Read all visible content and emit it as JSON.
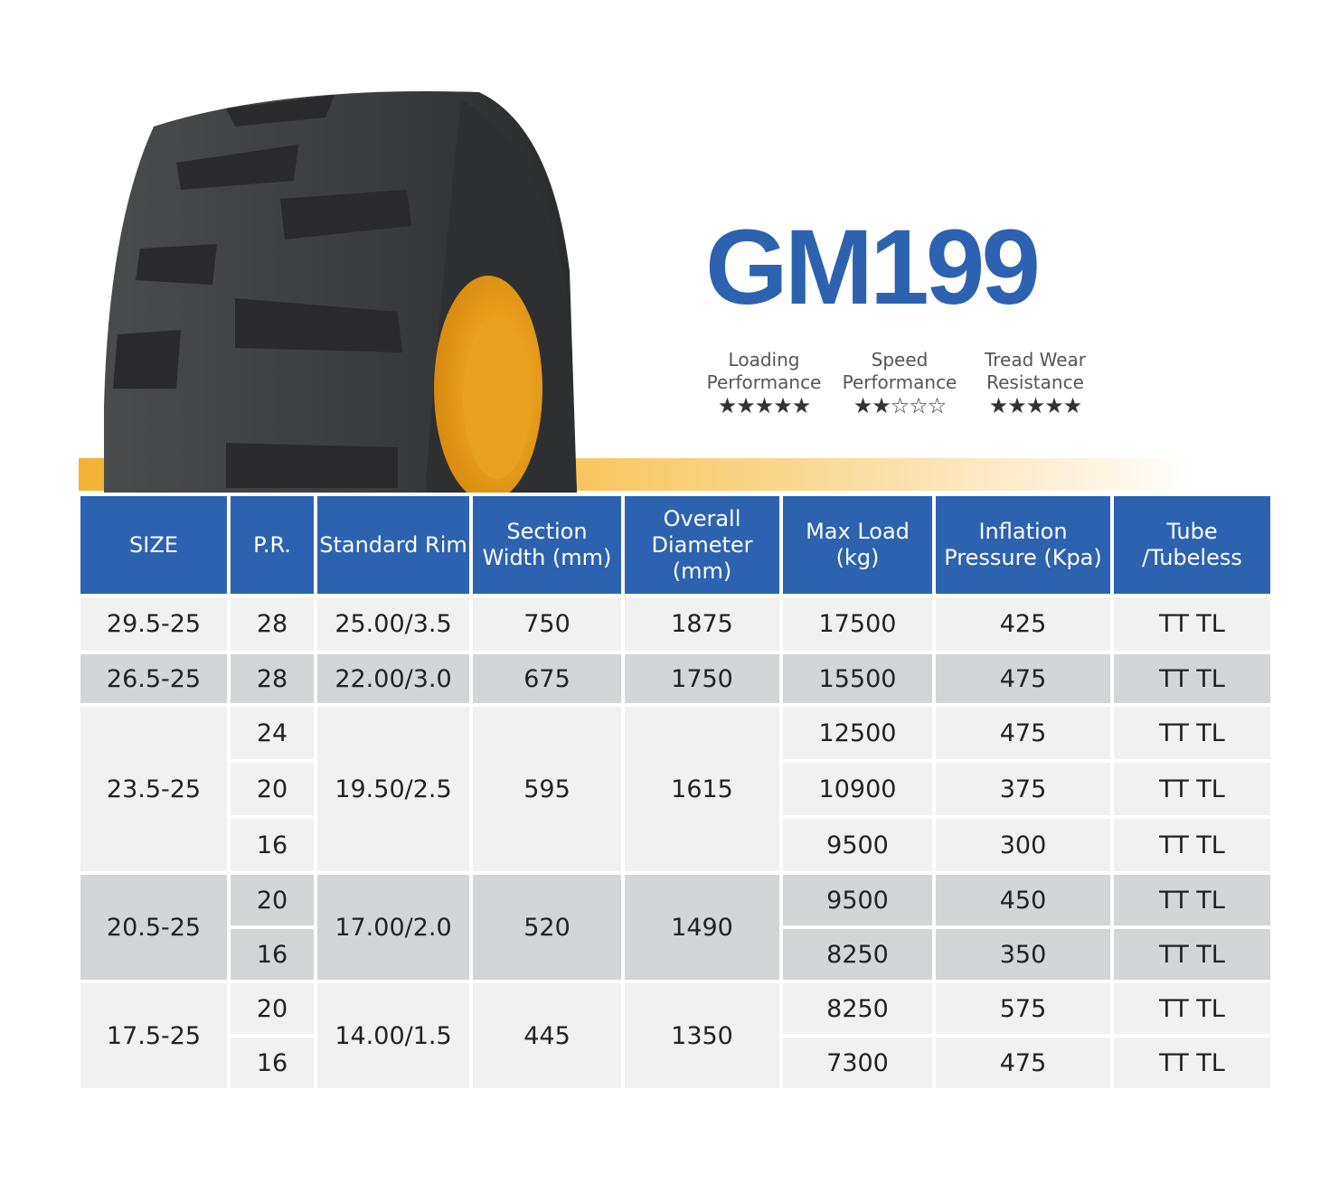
{
  "title": "GM199",
  "ratings": [
    {
      "label": "Loading Performance",
      "stars": 5,
      "max": 5,
      "display": "★★★★★"
    },
    {
      "label": "Speed Performance",
      "stars": 2,
      "max": 5,
      "display": "★★☆☆☆"
    },
    {
      "label": "Tread Wear Resistance",
      "stars": 5,
      "max": 5,
      "display": "★★★★★"
    }
  ],
  "colors": {
    "accent": "#2d62b0",
    "orange": "#f5b335",
    "row_light": "#f1f1f1",
    "row_grey": "#d4d5d6"
  },
  "table": {
    "headers": [
      "SIZE",
      "P.R.",
      "Standard Rim",
      "Section Width (mm)",
      "Overall Diameter (mm)",
      "Max Load (kg)",
      "Inflation Pressure (Kpa)",
      "Tube /Tubeless"
    ],
    "groups": [
      {
        "size": "29.5-25",
        "rim": "25.00/3.5",
        "width": "750",
        "diameter": "1875",
        "rows": [
          {
            "pr": "28",
            "load": "17500",
            "pressure": "425",
            "tube": "TT TL"
          }
        ]
      },
      {
        "size": "26.5-25",
        "rim": "22.00/3.0",
        "width": "675",
        "diameter": "1750",
        "rows": [
          {
            "pr": "28",
            "load": "15500",
            "pressure": "475",
            "tube": "TT TL"
          }
        ]
      },
      {
        "size": "23.5-25",
        "rim": "19.50/2.5",
        "width": "595",
        "diameter": "1615",
        "rows": [
          {
            "pr": "24",
            "load": "12500",
            "pressure": "475",
            "tube": "TT TL"
          },
          {
            "pr": "20",
            "load": "10900",
            "pressure": "375",
            "tube": "TT TL"
          },
          {
            "pr": "16",
            "load": "9500",
            "pressure": "300",
            "tube": "TT TL"
          }
        ]
      },
      {
        "size": "20.5-25",
        "rim": "17.00/2.0",
        "width": "520",
        "diameter": "1490",
        "rows": [
          {
            "pr": "20",
            "load": "9500",
            "pressure": "450",
            "tube": "TT TL"
          },
          {
            "pr": "16",
            "load": "8250",
            "pressure": "350",
            "tube": "TT TL"
          }
        ]
      },
      {
        "size": "17.5-25",
        "rim": "14.00/1.5",
        "width": "445",
        "diameter": "1350",
        "rows": [
          {
            "pr": "20",
            "load": "8250",
            "pressure": "575",
            "tube": "TT TL"
          },
          {
            "pr": "16",
            "load": "7300",
            "pressure": "475",
            "tube": "TT TL"
          }
        ]
      }
    ]
  }
}
